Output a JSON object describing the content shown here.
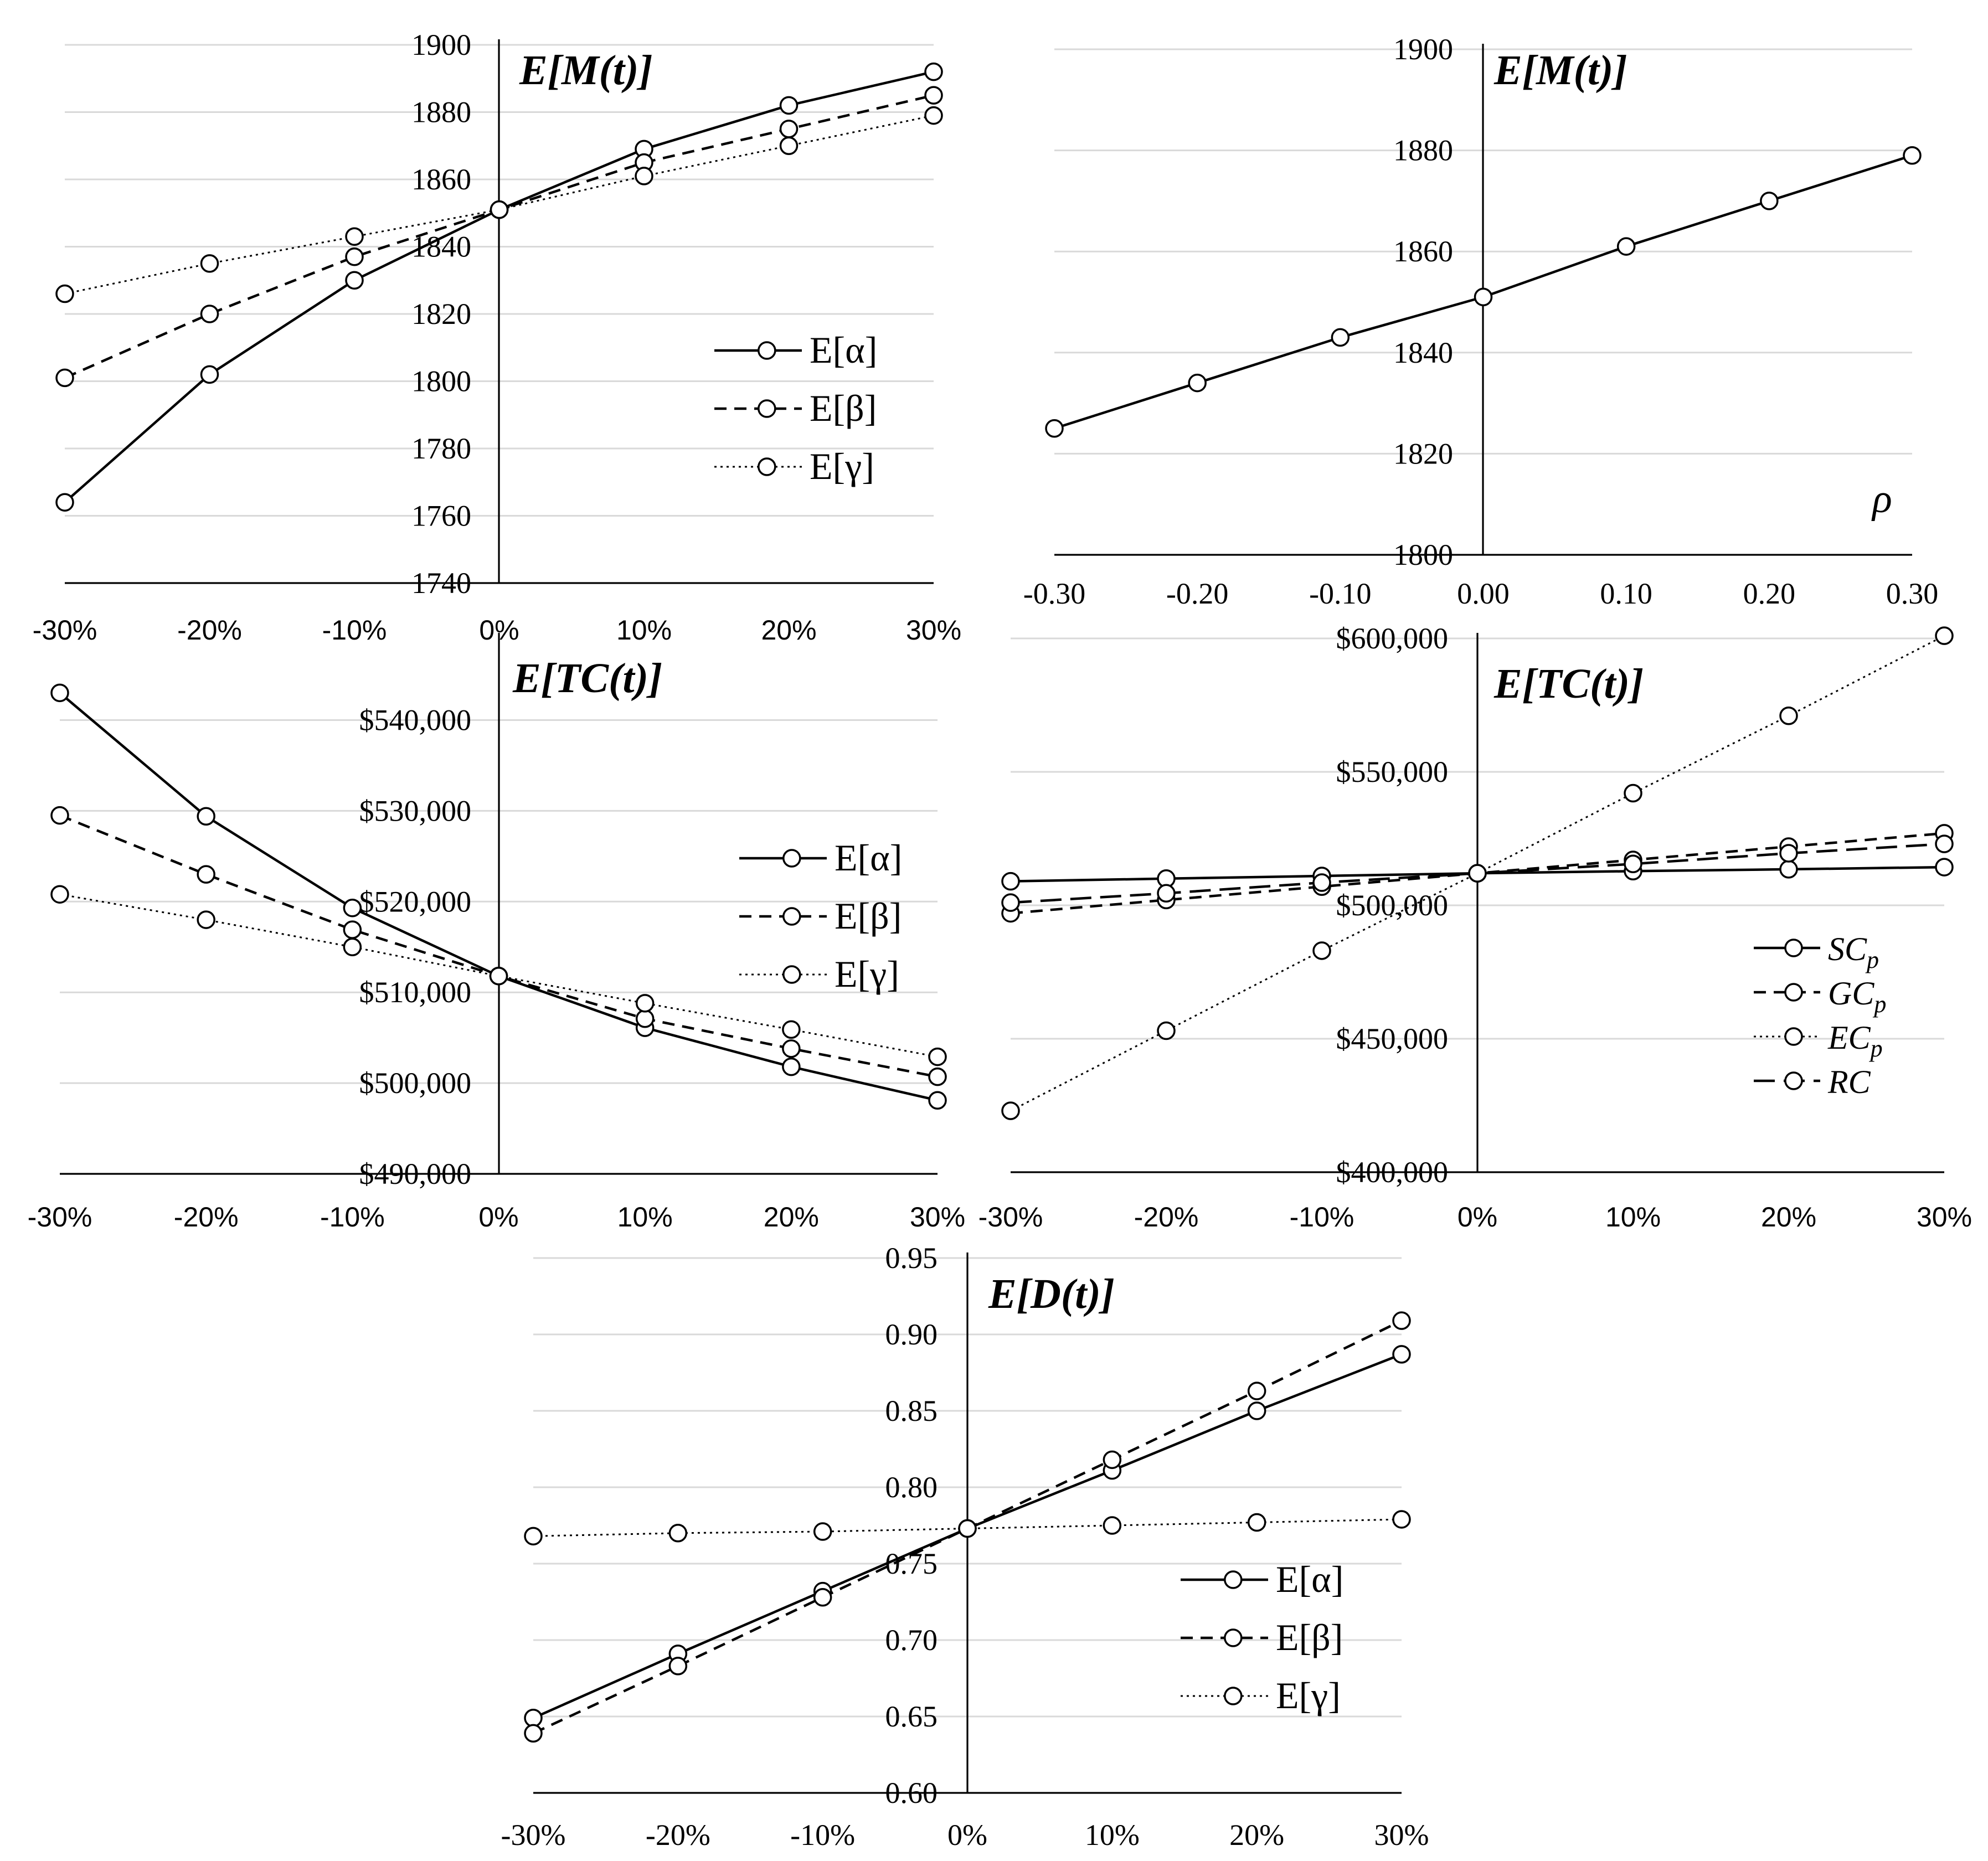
{
  "colors": {
    "line": "#000000",
    "grid": "#d9d9d9",
    "marker_fill": "#ffffff",
    "background": "#ffffff"
  },
  "chart_data": [
    {
      "id": "panel-a",
      "type": "line",
      "title_parts": [
        "E[",
        "M",
        "(",
        "t",
        ")]"
      ],
      "categories": [
        "-30%",
        "-20%",
        "-10%",
        "0%",
        "10%",
        "20%",
        "30%"
      ],
      "x": [
        -30,
        -20,
        -10,
        0,
        10,
        20,
        30
      ],
      "ylim": [
        1740,
        1900
      ],
      "yticks": [
        "1900",
        "1880",
        "1860",
        "1840",
        "1820",
        "1800",
        "1780",
        "1760",
        "1740"
      ],
      "ytick_values": [
        1900,
        1880,
        1860,
        1840,
        1820,
        1800,
        1780,
        1760,
        1740
      ],
      "grid": true,
      "legend_position": "center-right",
      "series": [
        {
          "name": "E[α]",
          "style": "solid",
          "values": [
            1764,
            1802,
            1830,
            1851,
            1869,
            1882,
            1892
          ]
        },
        {
          "name": "E[β]",
          "style": "dashed",
          "values": [
            1801,
            1820,
            1837,
            1851,
            1865,
            1875,
            1885
          ]
        },
        {
          "name": "E[γ]",
          "style": "dotted",
          "values": [
            1826,
            1835,
            1843,
            1851,
            1861,
            1870,
            1879
          ]
        }
      ]
    },
    {
      "id": "panel-b",
      "type": "line",
      "title_parts": [
        "E[",
        "M",
        "(",
        "t",
        ")]"
      ],
      "xlabel": "ρ",
      "categories": [
        "-0.30",
        "-0.20",
        "-0.10",
        "0.00",
        "0.10",
        "0.20",
        "0.30"
      ],
      "x": [
        -0.3,
        -0.2,
        -0.1,
        0.0,
        0.1,
        0.2,
        0.3
      ],
      "ylim": [
        1800,
        1900
      ],
      "yticks": [
        "1900",
        "1880",
        "1860",
        "1840",
        "1820",
        "1800"
      ],
      "ytick_values": [
        1900,
        1880,
        1860,
        1840,
        1820,
        1800
      ],
      "grid": true,
      "series": [
        {
          "style": "solid",
          "values": [
            1825,
            1834,
            1843,
            1851,
            1861,
            1870,
            1879
          ]
        }
      ]
    },
    {
      "id": "panel-c",
      "type": "line",
      "title_parts": [
        "E[",
        "TC",
        "(",
        "t",
        ")]"
      ],
      "categories": [
        "-30%",
        "-20%",
        "-10%",
        "0%",
        "10%",
        "20%",
        "30%"
      ],
      "x": [
        -30,
        -20,
        -10,
        0,
        10,
        20,
        30
      ],
      "ylim": [
        490000,
        549000
      ],
      "yticks": [
        "$540,000",
        "$530,000",
        "$520,000",
        "$510,000",
        "$500,000",
        "$490,000"
      ],
      "ytick_values": [
        540000,
        530000,
        520000,
        510000,
        500000,
        490000
      ],
      "grid": true,
      "legend_position": "center-right",
      "series": [
        {
          "name": "E[α]",
          "style": "solid",
          "values": [
            543000,
            529400,
            519300,
            511800,
            506100,
            501800,
            498100
          ]
        },
        {
          "name": "E[β]",
          "style": "dashed",
          "values": [
            529500,
            523000,
            516900,
            511800,
            507100,
            503800,
            500700
          ]
        },
        {
          "name": "E[γ]",
          "style": "dotted",
          "values": [
            520800,
            518000,
            515000,
            511800,
            508800,
            505900,
            502900
          ]
        }
      ]
    },
    {
      "id": "panel-d",
      "type": "line",
      "title_parts": [
        "E[",
        "TC",
        "(",
        "t",
        ")]"
      ],
      "categories": [
        "-30%",
        "-20%",
        "-10%",
        "0%",
        "10%",
        "20%",
        "30%"
      ],
      "x": [
        -30,
        -20,
        -10,
        0,
        10,
        20,
        30
      ],
      "ylim": [
        400000,
        600000
      ],
      "yticks": [
        "$600,000",
        "$550,000",
        "$500,000",
        "$450,000",
        "$400,000"
      ],
      "ytick_values": [
        600000,
        550000,
        500000,
        450000,
        400000
      ],
      "grid": true,
      "legend_position": "bottom-right",
      "series": [
        {
          "name": "SC",
          "subscript": "p",
          "style": "solid",
          "values": [
            509000,
            510000,
            511000,
            512000,
            512800,
            513500,
            514300
          ]
        },
        {
          "name": "GC",
          "subscript": "p",
          "style": "dashed",
          "values": [
            497000,
            502000,
            507000,
            512000,
            517000,
            522000,
            527000
          ]
        },
        {
          "name": "EC",
          "subscript": "p",
          "style": "dotted",
          "values": [
            423000,
            453000,
            483000,
            512000,
            542000,
            571000,
            601000
          ]
        },
        {
          "name": "RC",
          "style": "longdash",
          "values": [
            501000,
            504500,
            508500,
            512000,
            515500,
            519500,
            523000
          ]
        }
      ]
    },
    {
      "id": "panel-e",
      "type": "line",
      "title_parts": [
        "E[",
        "D",
        "(",
        "t",
        ")]"
      ],
      "categories": [
        "-30%",
        "-20%",
        "-10%",
        "0%",
        "10%",
        "20%",
        "30%"
      ],
      "x": [
        -30,
        -20,
        -10,
        0,
        10,
        20,
        30
      ],
      "ylim": [
        0.6,
        0.95
      ],
      "yticks": [
        "0.95",
        "0.90",
        "0.85",
        "0.80",
        "0.75",
        "0.70",
        "0.65",
        "0.60"
      ],
      "ytick_values": [
        0.95,
        0.9,
        0.85,
        0.8,
        0.75,
        0.7,
        0.65,
        0.6
      ],
      "grid": true,
      "legend_position": "bottom-right",
      "series": [
        {
          "name": "E[α]",
          "style": "solid",
          "values": [
            0.649,
            0.691,
            0.732,
            0.773,
            0.811,
            0.85,
            0.887
          ]
        },
        {
          "name": "E[β]",
          "style": "dashed",
          "values": [
            0.639,
            0.683,
            0.728,
            0.773,
            0.818,
            0.863,
            0.909
          ]
        },
        {
          "name": "E[γ]",
          "style": "dotted",
          "values": [
            0.768,
            0.77,
            0.771,
            0.773,
            0.775,
            0.777,
            0.779
          ]
        }
      ]
    }
  ]
}
